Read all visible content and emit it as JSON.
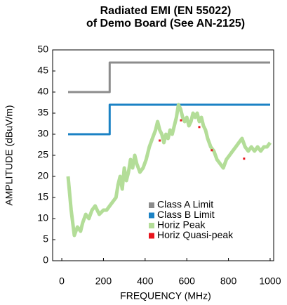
{
  "chart_data": {
    "type": "line",
    "title": [
      "Radiated EMI (EN 55022)",
      "of Demo Board (See AN-2125)"
    ],
    "xlabel": "FREQUENCY (MHz)",
    "ylabel": "AMPLITUDE (dBuV/m)",
    "xlim": [
      -44,
      1017
    ],
    "ylim": [
      0,
      50
    ],
    "xticks": [
      0,
      200,
      400,
      600,
      800,
      1000
    ],
    "yticks": [
      0,
      5,
      10,
      15,
      20,
      25,
      30,
      35,
      40,
      45,
      50
    ],
    "grid": false,
    "legend": "lower right",
    "series": [
      {
        "name": "Class A Limit",
        "color": "#8c8c8c",
        "mode": "line",
        "x": [
          30,
          230,
          230,
          1000
        ],
        "values": [
          40,
          40,
          47,
          47
        ]
      },
      {
        "name": "Class B Limit",
        "color": "#1b82c4",
        "mode": "line",
        "x": [
          30,
          230,
          230,
          1000
        ],
        "values": [
          30,
          30,
          37,
          37
        ]
      },
      {
        "name": "Horiz Peak",
        "color": "#b3dd98",
        "mode": "line",
        "x": [
          30,
          45,
          60,
          75,
          90,
          100,
          115,
          130,
          145,
          160,
          180,
          200,
          215,
          230,
          245,
          260,
          270,
          280,
          290,
          300,
          310,
          320,
          330,
          340,
          350,
          360,
          375,
          390,
          405,
          420,
          435,
          450,
          460,
          470,
          480,
          490,
          500,
          510,
          520,
          530,
          540,
          550,
          560,
          570,
          580,
          590,
          600,
          610,
          620,
          630,
          640,
          650,
          660,
          670,
          680,
          690,
          700,
          715,
          730,
          745,
          760,
          775,
          790,
          805,
          820,
          835,
          850,
          865,
          880,
          895,
          910,
          925,
          940,
          955,
          970,
          985,
          1000
        ],
        "values": [
          20,
          12,
          6,
          8,
          7,
          9,
          11,
          10,
          12,
          13,
          11,
          12,
          12,
          13,
          14,
          15,
          18,
          20,
          17,
          22,
          19,
          21,
          24,
          22,
          25,
          23,
          21,
          22,
          24,
          27,
          29,
          31,
          33,
          31,
          30,
          28,
          30,
          29,
          31,
          30,
          32,
          34,
          37,
          36,
          34,
          33,
          34,
          32,
          33,
          35,
          34,
          35,
          33,
          34,
          32,
          31,
          29,
          27,
          26,
          24,
          23,
          22,
          24,
          25,
          26,
          27,
          28,
          29,
          27,
          26,
          27,
          26,
          27,
          26,
          27,
          27,
          28
        ]
      },
      {
        "name": "Horiz Quasi-peak",
        "color": "#e8141c",
        "mode": "markers",
        "x": [
          470,
          572,
          660,
          720,
          875
        ],
        "values": [
          28.5,
          33.3,
          31.7,
          26.2,
          24.2
        ]
      }
    ]
  }
}
